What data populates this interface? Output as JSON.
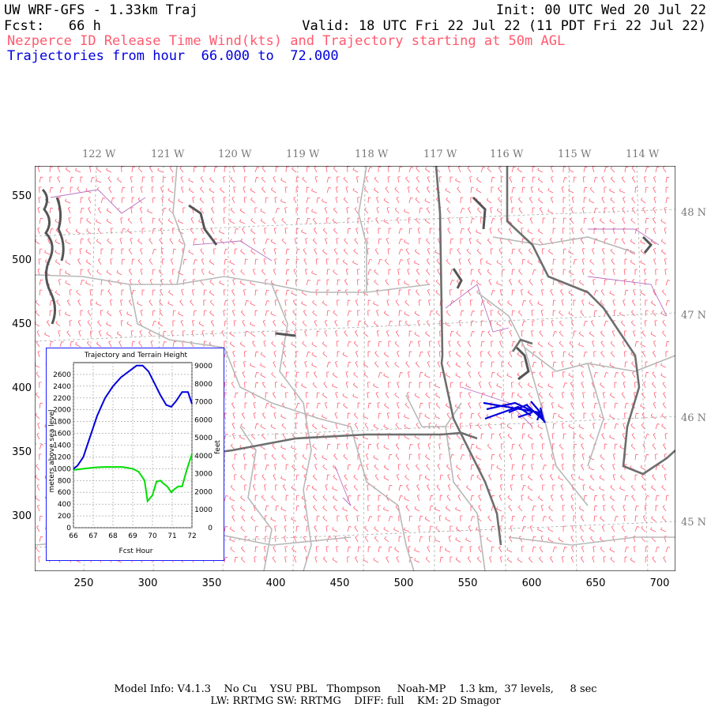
{
  "header": {
    "model": "UW WRF-GFS - 1.33km Traj",
    "init": "Init: 00 UTC Wed 20 Jul 22",
    "fcst": "Fcst:   66 h",
    "valid": "Valid: 18 UTC Fri 22 Jul 22 (11 PDT Fri 22 Jul 22)",
    "subtitle": "Nezperce ID Release Time Wind(kts) and Trajectory starting at 50m AGL",
    "traj_range": "Trajectories from hour  66.000 to  72.000"
  },
  "map": {
    "lon_labels": [
      "122 W",
      "121 W",
      "120 W",
      "119 W",
      "118 W",
      "117 W",
      "116 W",
      "115 W",
      "114 W"
    ],
    "lat_labels": [
      "48 N",
      "47 N",
      "46 N",
      "45 N"
    ],
    "y_ticks": [
      "550",
      "500",
      "450",
      "400",
      "350",
      "300"
    ],
    "x_ticks": [
      "250",
      "300",
      "350",
      "400",
      "450",
      "500",
      "550",
      "600",
      "650",
      "700"
    ],
    "colors": {
      "wind": "#ff5a6e",
      "border": "#b0b0b0",
      "state": "#6e6e6e",
      "county": "#c060c0",
      "trajectory": "#0000dd"
    }
  },
  "inset": {
    "title": "Trajectory and Terrain Height",
    "xlabel": "Fcst Hour",
    "ylabel_left": "meters above sea level",
    "ylabel_right": "feet",
    "x_ticks": [
      "66",
      "67",
      "68",
      "69",
      "70",
      "71",
      "72"
    ],
    "y_ticks_m": [
      "2600",
      "2400",
      "2200",
      "2000",
      "1800",
      "1600",
      "1400",
      "1200",
      "1000",
      "800",
      "600",
      "400",
      "200",
      "0"
    ],
    "y_ticks_ft": [
      "9000",
      "8000",
      "7000",
      "6000",
      "5000",
      "4000",
      "3000",
      "2000",
      "1000",
      "0"
    ]
  },
  "chart_data": {
    "type": "line",
    "title": "Trajectory and Terrain Height",
    "xlabel": "Fcst Hour",
    "ylabel": "meters above sea level",
    "xlim": [
      66,
      72
    ],
    "ylim": [
      0,
      2800
    ],
    "series": [
      {
        "color": "#0000dd",
        "x": [
          66,
          66.2,
          66.5,
          66.8,
          67.2,
          67.6,
          68.0,
          68.4,
          68.8,
          69.2,
          69.5,
          69.8,
          70.1,
          70.4,
          70.7,
          70.95,
          71.2,
          71.5,
          71.8,
          72.0
        ],
        "y": [
          1000,
          1050,
          1200,
          1500,
          1900,
          2200,
          2400,
          2550,
          2650,
          2750,
          2750,
          2650,
          2450,
          2250,
          2080,
          2050,
          2150,
          2300,
          2300,
          2100
        ]
      },
      {
        "color": "#00dd00",
        "x": [
          66,
          66.5,
          67,
          67.5,
          68,
          68.5,
          69,
          69.3,
          69.6,
          69.75,
          70.0,
          70.2,
          70.4,
          70.55,
          70.75,
          70.95,
          71.1,
          71.3,
          71.5,
          71.75,
          72.0
        ],
        "y": [
          980,
          1000,
          1020,
          1030,
          1030,
          1030,
          1000,
          950,
          800,
          450,
          550,
          780,
          800,
          750,
          700,
          600,
          650,
          700,
          700,
          1000,
          1250
        ]
      }
    ]
  },
  "footer": {
    "line1": "Model Info: V4.1.3    No Cu    YSU PBL   Thompson     Noah-MP    1.3 km,  37 levels,     8 sec",
    "line2": "LW: RRTMG SW: RRTMG    DIFF: full    KM: 2D Smagor"
  }
}
